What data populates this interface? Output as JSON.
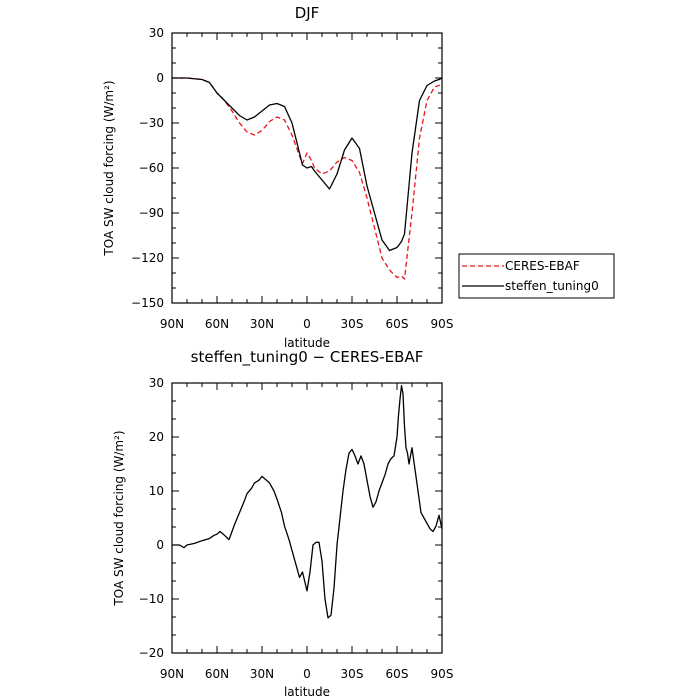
{
  "chart_data": [
    {
      "type": "line",
      "title": "DJF",
      "xlabel": "latitude",
      "ylabel": "TOA SW cloud forcing (W/m²)",
      "xlim": [
        90,
        -90
      ],
      "ylim": [
        -150,
        30
      ],
      "xticks": [
        90,
        60,
        30,
        0,
        -30,
        -60,
        -90
      ],
      "xtick_labels": [
        "90N",
        "60N",
        "30N",
        "0",
        "30S",
        "60S",
        "90S"
      ],
      "yticks": [
        30,
        0,
        -30,
        -60,
        -90,
        -120,
        -150
      ],
      "ytick_labels": [
        "30",
        "0",
        "−30",
        "−60",
        "−90",
        "−120",
        "−150"
      ],
      "legend_position": "right",
      "series": [
        {
          "name": "CERES-EBAF",
          "color": "#e8151b",
          "dash": "dashed",
          "x": [
            90,
            80,
            70,
            65,
            60,
            55,
            50,
            45,
            40,
            35,
            30,
            25,
            20,
            15,
            10,
            5,
            3,
            0,
            -3,
            -5,
            -10,
            -15,
            -20,
            -25,
            -30,
            -35,
            -40,
            -45,
            -50,
            -55,
            -60,
            -63,
            -65,
            -70,
            -75,
            -80,
            -85,
            -88,
            -90
          ],
          "y": [
            0,
            0,
            -1,
            -3,
            -10,
            -15,
            -22,
            -30,
            -36,
            -38,
            -35,
            -29,
            -26,
            -28,
            -38,
            -52,
            -57,
            -50,
            -55,
            -60,
            -64,
            -62,
            -56,
            -53,
            -55,
            -63,
            -80,
            -100,
            -120,
            -128,
            -133,
            -132,
            -134,
            -90,
            -40,
            -15,
            -6,
            -5,
            -4
          ]
        },
        {
          "name": "steffen_tuning0",
          "color": "#000000",
          "dash": "solid",
          "x": [
            90,
            80,
            70,
            65,
            60,
            55,
            50,
            45,
            40,
            35,
            30,
            25,
            20,
            15,
            10,
            5,
            3,
            0,
            -3,
            -5,
            -10,
            -15,
            -20,
            -25,
            -30,
            -35,
            -40,
            -45,
            -50,
            -55,
            -60,
            -63,
            -65,
            -70,
            -75,
            -80,
            -85,
            -88,
            -90
          ],
          "y": [
            0,
            0,
            -1,
            -3,
            -10,
            -15,
            -20,
            -25,
            -28,
            -26,
            -22,
            -18,
            -17,
            -19,
            -30,
            -50,
            -58,
            -60,
            -59,
            -62,
            -68,
            -74,
            -64,
            -48,
            -40,
            -47,
            -72,
            -90,
            -108,
            -115,
            -113,
            -109,
            -104,
            -50,
            -15,
            -5,
            -2,
            -1,
            0
          ]
        }
      ]
    },
    {
      "type": "line",
      "title": "steffen_tuning0 − CERES-EBAF",
      "xlabel": "latitude",
      "ylabel": "TOA SW cloud forcing (W/m²)",
      "xlim": [
        90,
        -90
      ],
      "ylim": [
        -20,
        30
      ],
      "xticks": [
        90,
        60,
        30,
        0,
        -30,
        -60,
        -90
      ],
      "xtick_labels": [
        "90N",
        "60N",
        "30N",
        "0",
        "30S",
        "60S",
        "90S"
      ],
      "yticks": [
        30,
        20,
        10,
        0,
        -10,
        -20
      ],
      "ytick_labels": [
        "30",
        "20",
        "10",
        "0",
        "−10",
        "−20"
      ],
      "series": [
        {
          "name": "",
          "color": "#000000",
          "dash": "solid",
          "x": [
            90,
            85,
            82,
            80,
            75,
            70,
            65,
            62,
            60,
            58,
            55,
            52,
            50,
            48,
            45,
            42,
            40,
            37,
            35,
            32,
            30,
            27,
            25,
            22,
            20,
            17,
            15,
            12,
            10,
            7,
            5,
            3,
            0,
            -2,
            -4,
            -6,
            -8,
            -10,
            -12,
            -14,
            -16,
            -18,
            -20,
            -22,
            -24,
            -26,
            -28,
            -30,
            -32,
            -34,
            -36,
            -38,
            -40,
            -42,
            -44,
            -46,
            -48,
            -50,
            -52,
            -54,
            -56,
            -58,
            -60,
            -61,
            -62,
            -63,
            -64,
            -65,
            -66,
            -67,
            -68,
            -70,
            -72,
            -74,
            -76,
            -78,
            -80,
            -82,
            -84,
            -85,
            -86,
            -88,
            -90
          ],
          "y": [
            0,
            0,
            -0.5,
            0,
            0.3,
            0.8,
            1.2,
            1.8,
            2,
            2.5,
            1.8,
            1,
            2.5,
            4,
            6,
            8,
            9.5,
            10.5,
            11.5,
            12,
            12.7,
            12,
            11.5,
            10,
            8.5,
            6,
            3.5,
            1,
            -1,
            -4,
            -6,
            -5,
            -8.5,
            -5,
            0,
            0.5,
            0.5,
            -3,
            -10,
            -13.5,
            -13,
            -8,
            0,
            5,
            10,
            14,
            17,
            17.7,
            16.5,
            15,
            16.5,
            15,
            12,
            9,
            7,
            8,
            10,
            11.5,
            13,
            15,
            16,
            16.5,
            20,
            24,
            27,
            29.5,
            28,
            22,
            18,
            17,
            15,
            18,
            14,
            10,
            6,
            5,
            4,
            3,
            2.5,
            3,
            3.5,
            5.5,
            3
          ]
        }
      ]
    }
  ],
  "legend": {
    "items": [
      {
        "label": "CERES-EBAF",
        "color": "#e8151b",
        "dash": "dashed"
      },
      {
        "label": "steffen_tuning0",
        "color": "#000000",
        "dash": "solid"
      }
    ]
  }
}
